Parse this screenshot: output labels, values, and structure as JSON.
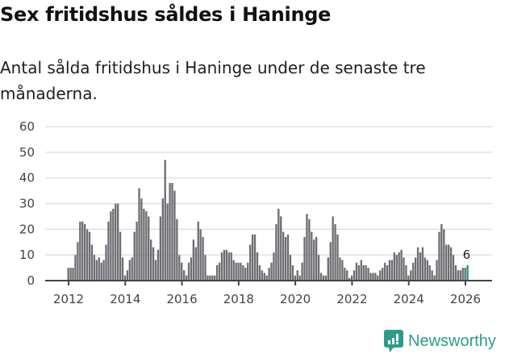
{
  "header": {
    "title": "Sex fritidshus såldes i Haninge",
    "subtitle": "Antal sålda fritidshus i Haninge under de senaste tre månaderna."
  },
  "branding": {
    "name": "Newsworthy",
    "color": "#2e9c8c"
  },
  "colors": {
    "bar": "#6e6d73",
    "highlight": "#1a9a8e",
    "grid": "#e0e0e0",
    "axis": "#444444"
  },
  "chart_data": {
    "type": "bar",
    "title": "Sex fritidshus såldes i Haninge",
    "subtitle": "Antal sålda fritidshus i Haninge under de senaste tre månaderna.",
    "xlabel": "",
    "ylabel": "",
    "ylim": [
      0,
      60
    ],
    "yticks": [
      0,
      10,
      20,
      30,
      40,
      50,
      60
    ],
    "xticks": [
      "2012",
      "2014",
      "2016",
      "2018",
      "2020",
      "2022",
      "2024",
      "2026"
    ],
    "grid": true,
    "start": "2012-01",
    "frequency": "monthly",
    "annotation": {
      "label": "6",
      "at": "2026-02",
      "value": 6
    },
    "series": [
      {
        "name": "Sålda fritidshus",
        "values": [
          5,
          5,
          5,
          10,
          15,
          23,
          23,
          22,
          20,
          19,
          14,
          10,
          8,
          9,
          7,
          8,
          14,
          23,
          27,
          28,
          30,
          30,
          19,
          9,
          2,
          4,
          8,
          9,
          19,
          23,
          36,
          32,
          28,
          27,
          25,
          16,
          13,
          8,
          12,
          25,
          32,
          47,
          30,
          38,
          38,
          35,
          24,
          10,
          7,
          4,
          2,
          7,
          9,
          16,
          13,
          23,
          20,
          17,
          10,
          2,
          2,
          2,
          2,
          6,
          7,
          11,
          12,
          12,
          11,
          11,
          8,
          7,
          7,
          7,
          6,
          5,
          7,
          14,
          18,
          18,
          11,
          6,
          4,
          3,
          2,
          5,
          7,
          11,
          22,
          28,
          25,
          19,
          17,
          18,
          10,
          6,
          2,
          4,
          2,
          7,
          17,
          26,
          24,
          19,
          16,
          17,
          10,
          3,
          2,
          2,
          9,
          15,
          25,
          22,
          18,
          9,
          8,
          5,
          4,
          1,
          2,
          4,
          7,
          6,
          8,
          6,
          6,
          5,
          3,
          3,
          3,
          2,
          4,
          5,
          7,
          6,
          8,
          8,
          11,
          10,
          11,
          12,
          9,
          6,
          2,
          4,
          7,
          9,
          13,
          11,
          13,
          9,
          8,
          6,
          4,
          2,
          8,
          19,
          22,
          20,
          14,
          14,
          13,
          10,
          6,
          4,
          4,
          5,
          5,
          6
        ]
      }
    ]
  }
}
